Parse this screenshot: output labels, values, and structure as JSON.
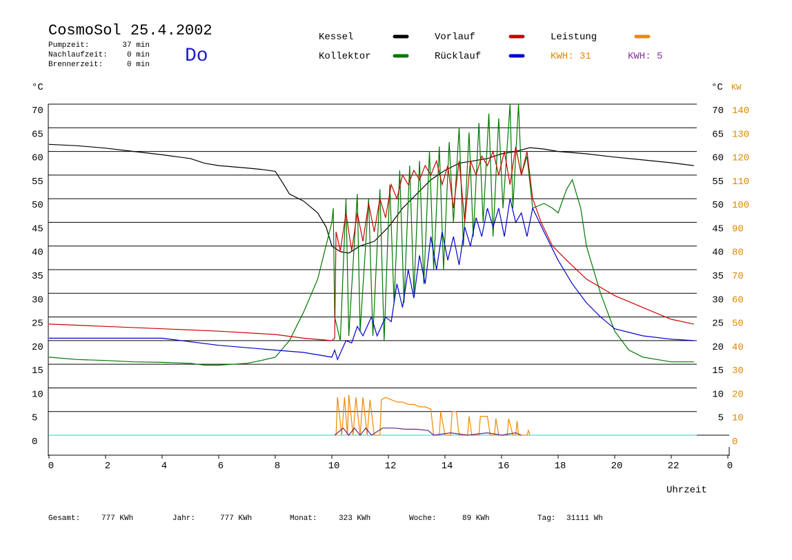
{
  "header": {
    "title": "CosmoSol 25.4.2002",
    "day": "Do",
    "info": [
      {
        "label": "Pumpzeit:",
        "value": "37 min"
      },
      {
        "label": "Nachlaufzeit:",
        "value": "0 min"
      },
      {
        "label": "Brennerzeit:",
        "value": "0 min"
      }
    ]
  },
  "chart_data": {
    "type": "line",
    "y_label": "°C",
    "y_right_label": "°C",
    "y2_label": "KW",
    "x_label": "Uhrzeit",
    "xlim": [
      0,
      24
    ],
    "xticks": [
      0,
      2,
      4,
      6,
      8,
      10,
      12,
      14,
      16,
      18,
      20,
      22,
      {
        "value": 24,
        "label": "0"
      }
    ],
    "ylim": [
      -4.3,
      70
    ],
    "yticks": [
      0,
      5,
      10,
      15,
      20,
      25,
      30,
      35,
      40,
      45,
      50,
      55,
      60,
      65,
      70
    ],
    "yticks_right": [
      5,
      10,
      15,
      20,
      25,
      30,
      35,
      40,
      45,
      50,
      55,
      60,
      65,
      70
    ],
    "y2lim": [
      -8.6,
      140
    ],
    "y2ticks": [
      0,
      10,
      20,
      30,
      40,
      50,
      60,
      70,
      80,
      90,
      100,
      110,
      120,
      130,
      140
    ],
    "grid": true,
    "grid_color": "#000000",
    "zero_line_color": "#33cccc",
    "y2_color": "#dd8800",
    "series": [
      {
        "name": "Kessel",
        "color": "#000000",
        "x": [
          0,
          1,
          2,
          3,
          4,
          5,
          5.5,
          6,
          7,
          7.5,
          8,
          8.3,
          8.5,
          9,
          9.5,
          9.8,
          10,
          10.3,
          10.6,
          11,
          11.5,
          12,
          12.5,
          13,
          13.5,
          14,
          14.5,
          15,
          15.5,
          16,
          16.5,
          17,
          17.5,
          18,
          19,
          20,
          21,
          22,
          22.8
        ],
        "values": [
          61.5,
          61.2,
          60.7,
          60,
          59.3,
          58.5,
          57.5,
          57,
          56.5,
          56.2,
          55.8,
          53,
          51,
          49.5,
          47,
          44,
          40,
          38.8,
          38.5,
          40,
          41,
          44,
          48,
          51,
          54,
          56,
          57.5,
          58,
          58.5,
          59.5,
          60,
          60.8,
          60.5,
          60,
          59.5,
          58.8,
          58.2,
          57.6,
          57
        ]
      },
      {
        "name": "Kollektor",
        "color": "#007700",
        "x": [
          0,
          1,
          2,
          3,
          4,
          5,
          5.5,
          6,
          7,
          7.5,
          8,
          8.5,
          9,
          9.5,
          10,
          10.05,
          10.1,
          10.3,
          10.5,
          10.6,
          10.9,
          11,
          11.3,
          11.45,
          11.7,
          11.85,
          12.05,
          12.2,
          12.4,
          12.55,
          12.75,
          12.9,
          13.1,
          13.25,
          13.45,
          13.6,
          13.8,
          13.95,
          14.15,
          14.3,
          14.5,
          14.65,
          14.85,
          15,
          15.2,
          15.35,
          15.55,
          15.7,
          15.9,
          16.05,
          16.3,
          16.4,
          16.6,
          16.7,
          16.9,
          17.1,
          17.5,
          17.8,
          18,
          18.3,
          18.5,
          18.8,
          19,
          19.5,
          20,
          20.5,
          21,
          21.5,
          22,
          22.8
        ],
        "values": [
          16.5,
          16,
          15.8,
          15.5,
          15.4,
          15.2,
          14.8,
          14.8,
          15.2,
          15.8,
          16.5,
          20,
          26,
          33,
          45,
          48,
          25,
          20,
          50,
          21,
          51,
          22,
          50,
          21,
          52,
          20,
          53,
          28,
          56,
          28,
          57,
          30,
          58,
          32,
          60,
          35,
          61,
          35,
          62,
          45,
          65,
          40,
          64,
          42,
          66,
          45,
          68,
          42,
          67,
          48,
          70,
          48,
          70,
          55,
          59,
          48,
          49,
          48,
          47,
          52,
          54,
          48,
          40,
          30,
          22,
          18,
          16.5,
          16,
          15.5,
          15.5
        ]
      },
      {
        "name": "Vorlauf",
        "color": "#cc0000",
        "x": [
          0,
          2,
          4,
          6,
          8,
          9,
          10,
          10.1,
          10.15,
          10.3,
          10.5,
          10.7,
          10.9,
          11.1,
          11.3,
          11.5,
          11.7,
          11.9,
          12.1,
          12.3,
          12.5,
          12.7,
          12.9,
          13.1,
          13.3,
          13.5,
          13.7,
          13.9,
          14.1,
          14.3,
          14.5,
          14.7,
          14.9,
          15.1,
          15.3,
          15.5,
          15.7,
          15.9,
          16.1,
          16.3,
          16.5,
          16.7,
          16.9,
          17.1,
          17.4,
          17.8,
          18.3,
          19,
          20,
          21,
          22,
          22.8
        ],
        "values": [
          23.5,
          23,
          22.5,
          22,
          21.3,
          20.5,
          20,
          20.5,
          43,
          39,
          47,
          39,
          47,
          41,
          49,
          43,
          50,
          46,
          53,
          50,
          55,
          53,
          56,
          54,
          57,
          55,
          58,
          53,
          57,
          48,
          58,
          45,
          58,
          55,
          59,
          57,
          60,
          55,
          60,
          53,
          61,
          55,
          60,
          50,
          45,
          40,
          37,
          33,
          29.5,
          27,
          24.5,
          23.5
        ]
      },
      {
        "name": "Rücklauf",
        "color": "#0000cc",
        "x": [
          0,
          2,
          4,
          6,
          8,
          9,
          10,
          10.1,
          10.2,
          10.5,
          10.7,
          10.9,
          11.1,
          11.4,
          11.6,
          11.9,
          12.1,
          12.3,
          12.5,
          12.7,
          12.9,
          13.1,
          13.3,
          13.5,
          13.7,
          13.9,
          14.1,
          14.3,
          14.5,
          14.7,
          14.9,
          15.1,
          15.3,
          15.5,
          15.7,
          15.9,
          16.1,
          16.3,
          16.5,
          16.7,
          16.9,
          17.1,
          17.5,
          18,
          18.5,
          19,
          19.5,
          20,
          21,
          22,
          22.8
        ],
        "values": [
          20.5,
          20.5,
          20.5,
          19,
          18,
          17.5,
          16.5,
          18,
          16,
          20,
          19.5,
          23,
          21,
          25,
          21,
          25,
          24,
          32,
          27,
          35,
          29,
          38,
          32,
          42,
          35,
          43,
          37,
          42,
          36,
          44,
          40,
          46,
          42,
          48,
          44,
          48,
          42,
          50,
          45,
          47,
          42,
          48,
          43,
          37,
          32,
          28,
          25,
          22.5,
          21,
          20.3,
          20
        ]
      },
      {
        "name": "Leistung",
        "color": "#ee8800",
        "axis": "y2",
        "x": [
          10.1,
          10.15,
          10.2,
          10.35,
          10.45,
          10.55,
          10.6,
          10.75,
          10.85,
          11,
          11.1,
          11.25,
          11.35,
          11.5,
          11.7,
          11.75,
          11.9,
          12.1,
          12.3,
          12.5,
          12.7,
          12.9,
          13.1,
          13.3,
          13.5,
          13.6,
          13.8,
          13.85,
          14,
          14.2,
          14.25,
          14.4,
          14.5,
          14.8,
          14.85,
          14.95,
          15.2,
          15.25,
          15.5,
          15.6,
          15.75,
          15.8,
          15.9,
          16.2,
          16.25,
          16.4,
          16.5,
          16.55,
          16.6,
          16.9,
          16.95,
          17
        ],
        "values": [
          0,
          0,
          16,
          0,
          16,
          0,
          17,
          0,
          16,
          0,
          16,
          0,
          15,
          0,
          0,
          15,
          16,
          15,
          14,
          14,
          13,
          13,
          12,
          12,
          11,
          0,
          0,
          10,
          0,
          0,
          10,
          10,
          0,
          0,
          8,
          0,
          0,
          8,
          8,
          0,
          0,
          7,
          0,
          0,
          7,
          0,
          0,
          6,
          0,
          0,
          2,
          0
        ]
      },
      {
        "color": "#662288",
        "axis": "y2",
        "x": [
          10.1,
          10.4,
          10.6,
          10.8,
          11,
          11.2,
          11.4,
          11.8,
          12.2,
          12.6,
          13,
          13.4,
          13.6,
          14.2,
          14.8,
          15.5,
          16,
          16.5,
          16.7
        ],
        "values": [
          0,
          3,
          0,
          3,
          0,
          3,
          0,
          3,
          3,
          2.5,
          2.5,
          2,
          0,
          1,
          0,
          1,
          0,
          1,
          0
        ]
      }
    ],
    "annotations": [
      {
        "text": "KWH: 31",
        "color": "#dd8800"
      },
      {
        "text": "KWH: 5",
        "color": "#883399"
      }
    ]
  },
  "footer": [
    {
      "label": "Gesamt:",
      "value": "777 KWh"
    },
    {
      "label": "Jahr:",
      "value": "777 KWh"
    },
    {
      "label": "Monat:",
      "value": "323 KWh"
    },
    {
      "label": "Woche:",
      "value": "89 KWh"
    },
    {
      "label": "Tag:",
      "value": "31111 Wh"
    }
  ]
}
